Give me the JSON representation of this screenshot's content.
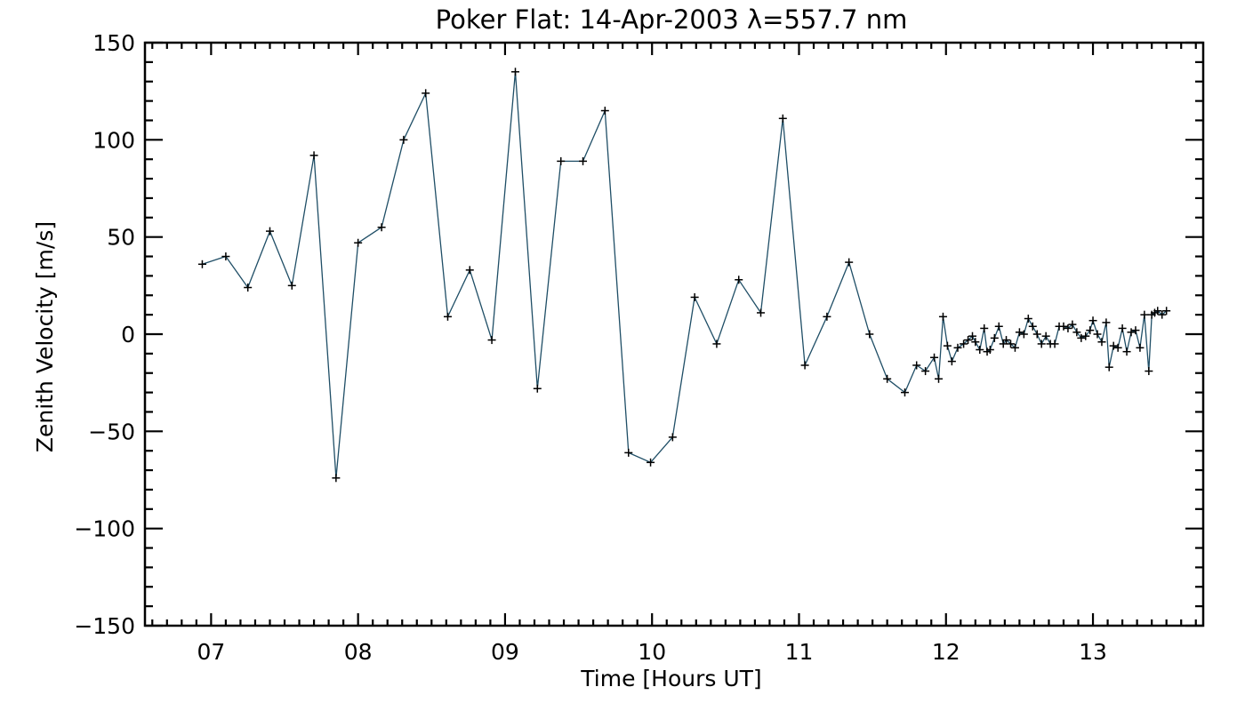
{
  "chart_data": {
    "type": "line",
    "title": "Poker Flat: 14-Apr-2003 λ=557.7 nm",
    "xlabel": "Time [Hours UT]",
    "ylabel": "Zenith Velocity [m/s]",
    "xlim": [
      6.55,
      13.75
    ],
    "ylim": [
      -150,
      150
    ],
    "x_ticks": [
      {
        "value": 7,
        "label": "07"
      },
      {
        "value": 8,
        "label": "08"
      },
      {
        "value": 9,
        "label": "09"
      },
      {
        "value": 10,
        "label": "10"
      },
      {
        "value": 11,
        "label": "11"
      },
      {
        "value": 12,
        "label": "12"
      },
      {
        "value": 13,
        "label": "13"
      }
    ],
    "y_ticks": [
      {
        "value": 150,
        "label": "150"
      },
      {
        "value": 100,
        "label": "100"
      },
      {
        "value": 50,
        "label": "50"
      },
      {
        "value": 0,
        "label": "0"
      },
      {
        "value": -50,
        "label": "−50"
      },
      {
        "value": -100,
        "label": "−100"
      },
      {
        "value": -150,
        "label": "−150"
      }
    ],
    "x_minor_step": 0.1,
    "y_minor_step": 10,
    "grid": false,
    "legend": "none",
    "line_color": "#1f4e66",
    "marker": "+",
    "series": [
      {
        "name": "zenith velocity",
        "x": [
          6.94,
          7.1,
          7.25,
          7.4,
          7.55,
          7.7,
          7.85,
          8.0,
          8.16,
          8.31,
          8.46,
          8.61,
          8.76,
          8.91,
          9.07,
          9.22,
          9.38,
          9.53,
          9.68,
          9.84,
          9.99,
          10.14,
          10.29,
          10.44,
          10.59,
          10.74,
          10.89,
          11.04,
          11.19,
          11.34,
          11.48,
          11.6,
          11.72,
          11.8,
          11.86,
          11.92,
          11.95,
          11.98,
          12.01,
          12.04,
          12.08,
          12.12,
          12.15,
          12.18,
          12.2,
          12.23,
          12.26,
          12.28,
          12.3,
          12.33,
          12.36,
          12.39,
          12.41,
          12.44,
          12.47,
          12.5,
          12.53,
          12.56,
          12.59,
          12.62,
          12.65,
          12.68,
          12.71,
          12.74,
          12.77,
          12.8,
          12.83,
          12.86,
          12.89,
          12.92,
          12.95,
          12.98,
          13.0,
          13.03,
          13.06,
          13.09,
          13.11,
          13.14,
          13.17,
          13.2,
          13.23,
          13.26,
          13.29,
          13.32,
          13.35,
          13.38,
          13.4,
          13.42,
          13.44,
          13.47,
          13.5
        ],
        "y": [
          36,
          40,
          24,
          53,
          25,
          92,
          -74,
          47,
          55,
          100,
          124,
          9,
          33,
          -3,
          135,
          -28,
          89,
          89,
          115,
          -61,
          -66,
          -53,
          19,
          -5,
          28,
          11,
          111,
          -16,
          9,
          37,
          0,
          -23,
          -30,
          -16,
          -19,
          -12,
          -23,
          9,
          -6,
          -14,
          -7,
          -5,
          -3,
          -1,
          -4,
          -8,
          3,
          -9,
          -8,
          -2,
          4,
          -5,
          -3,
          -5,
          -7,
          1,
          0,
          8,
          4,
          0,
          -5,
          -1,
          -5,
          -5,
          4,
          4,
          3,
          5,
          1,
          -2,
          -1,
          2,
          7,
          0,
          -4,
          6,
          -17,
          -6,
          -7,
          3,
          -9,
          1,
          2,
          -7,
          10,
          -19,
          10,
          11,
          12,
          10,
          12
        ]
      }
    ]
  }
}
